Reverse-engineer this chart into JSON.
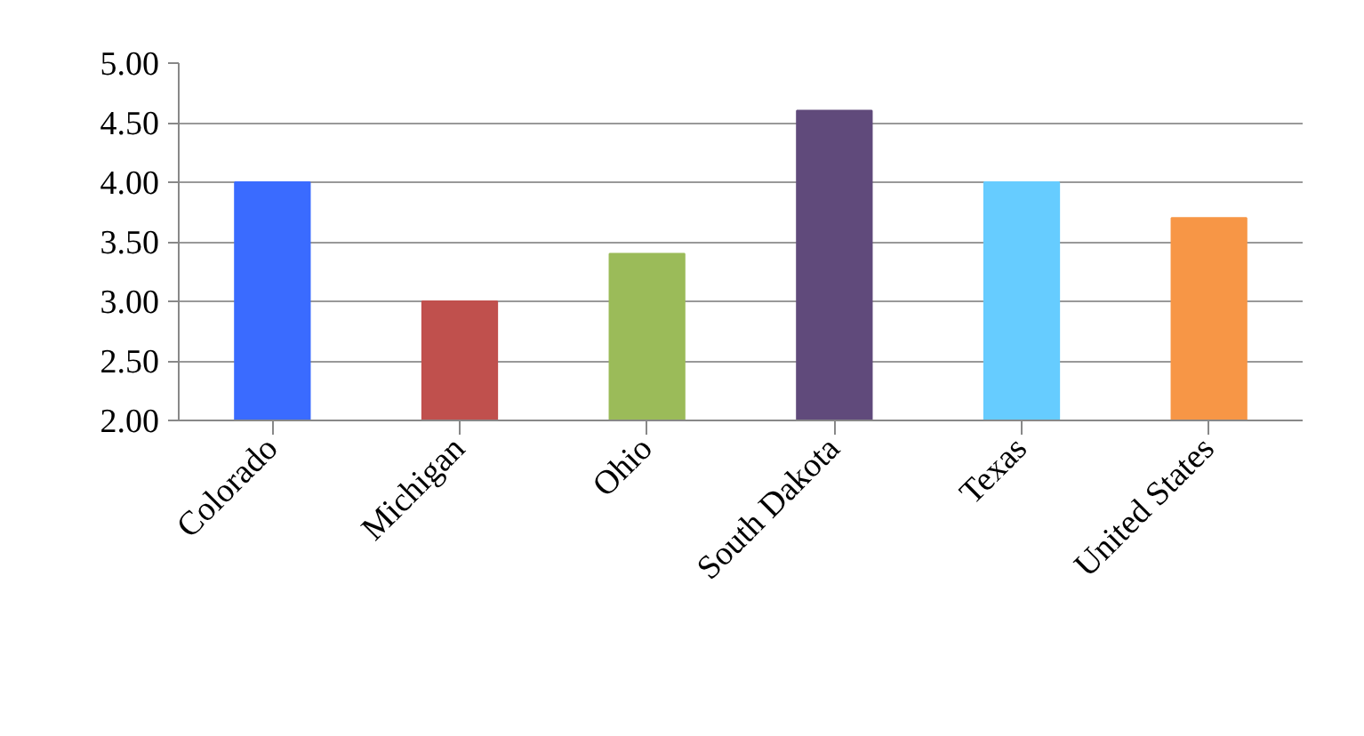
{
  "chart_data": {
    "type": "bar",
    "categories": [
      "Colorado",
      "Michigan",
      "Ohio",
      "South Dakota",
      "Texas",
      "United States"
    ],
    "values": [
      4.0,
      3.0,
      3.4,
      4.6,
      4.0,
      3.7
    ],
    "colors": [
      "#3a6bff",
      "#c0504d",
      "#9bbb59",
      "#604a7b",
      "#66ccff",
      "#f79646"
    ],
    "ylim": [
      2,
      5
    ],
    "yticks": [
      {
        "value": 2,
        "label": "2.00"
      },
      {
        "value": 2.5,
        "label": "2.50"
      },
      {
        "value": 3,
        "label": "3.00"
      },
      {
        "value": 3.5,
        "label": "3.50"
      },
      {
        "value": 4,
        "label": "4.00"
      },
      {
        "value": 4.5,
        "label": "4.50"
      },
      {
        "value": 5,
        "label": "5.00"
      }
    ],
    "grid": "y"
  }
}
